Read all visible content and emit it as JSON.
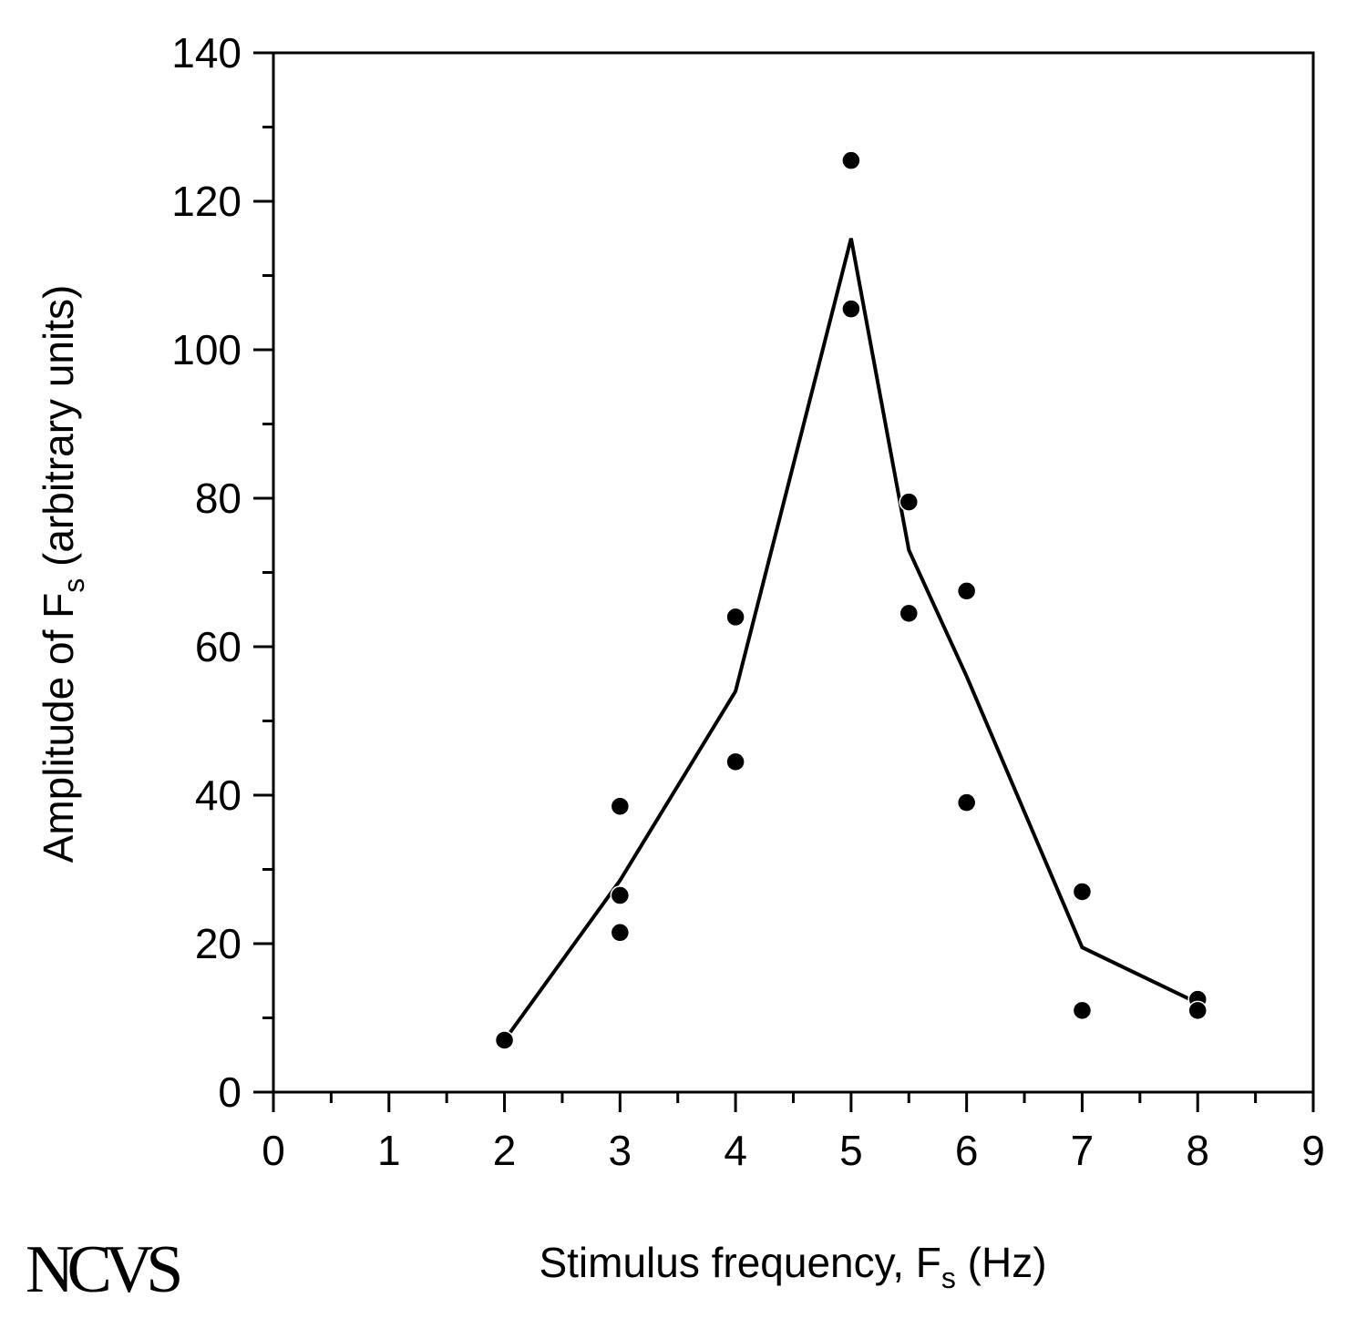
{
  "chart_data": {
    "type": "scatter",
    "title": "",
    "xlabel": {
      "main": "Stimulus frequency, F",
      "sub": "s",
      "suffix": " (Hz)"
    },
    "ylabel": {
      "main": "Amplitude of F",
      "sub": "s",
      "suffix": " (arbitrary units)"
    },
    "xlim": [
      0,
      9
    ],
    "ylim": [
      0,
      140
    ],
    "x_ticks": [
      "0",
      "1",
      "2",
      "3",
      "4",
      "5",
      "6",
      "7",
      "8",
      "9"
    ],
    "y_ticks": [
      "0",
      "20",
      "40",
      "60",
      "80",
      "100",
      "120",
      "140"
    ],
    "grid": false,
    "legend": "none",
    "series": [
      {
        "kind": "points",
        "points": [
          [
            2,
            7
          ],
          [
            3,
            38.5
          ],
          [
            3,
            26.5
          ],
          [
            3,
            21.5
          ],
          [
            4,
            64
          ],
          [
            4,
            44.5
          ],
          [
            5,
            125.5
          ],
          [
            5,
            105.5
          ],
          [
            5.5,
            79.5
          ],
          [
            5.5,
            64.5
          ],
          [
            6,
            67.5
          ],
          [
            6,
            39
          ],
          [
            7,
            27
          ],
          [
            7,
            11
          ],
          [
            8,
            12.5
          ],
          [
            8,
            11
          ]
        ]
      },
      {
        "kind": "line",
        "points": [
          [
            2,
            7
          ],
          [
            3,
            28.5
          ],
          [
            4,
            54
          ],
          [
            5,
            115
          ],
          [
            5.5,
            73
          ],
          [
            6,
            56
          ],
          [
            7,
            19.5
          ],
          [
            8,
            12
          ]
        ]
      }
    ],
    "colors": {
      "ink": "#000000",
      "background": "#ffffff"
    }
  },
  "logo": {
    "text": "NCVS"
  }
}
